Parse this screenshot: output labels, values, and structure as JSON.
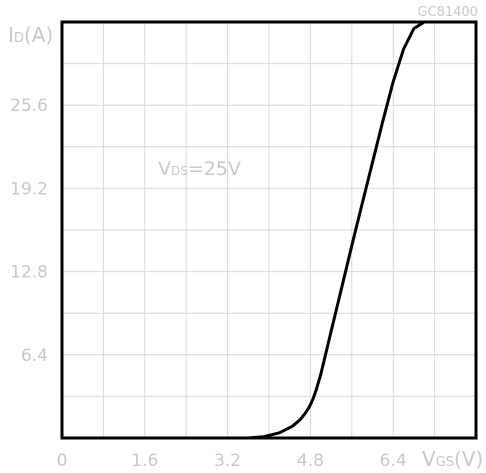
{
  "figure_code": "GC81400",
  "chart_data": {
    "type": "line",
    "x_label": {
      "main": "V",
      "sub": "GS",
      "unit": "(V)"
    },
    "y_label": {
      "main": "I",
      "sub": "D",
      "unit": "(A)"
    },
    "annotation": {
      "main": "V",
      "sub": "DS",
      "rest": "=25V"
    },
    "x_ticks": [
      "0",
      "1.6",
      "3.2",
      "4.8",
      "6.4"
    ],
    "y_ticks": [
      "6.4",
      "12.8",
      "19.2",
      "25.6"
    ],
    "xlim": [
      0,
      8.0
    ],
    "ylim": [
      0,
      32.0
    ],
    "grid": true,
    "series": [
      {
        "x": [
          3.6,
          3.9,
          4.2,
          4.45,
          4.6,
          4.7,
          4.78,
          4.85,
          4.92,
          5.0,
          5.2,
          5.4,
          5.6,
          5.8,
          6.0,
          6.2,
          6.4,
          6.6,
          6.8,
          7.0
        ],
        "y": [
          0.0,
          0.1,
          0.4,
          0.9,
          1.4,
          1.9,
          2.4,
          3.0,
          3.8,
          4.9,
          8.2,
          11.5,
          14.8,
          18.0,
          21.2,
          24.4,
          27.4,
          29.9,
          31.5,
          32.0
        ]
      }
    ]
  }
}
